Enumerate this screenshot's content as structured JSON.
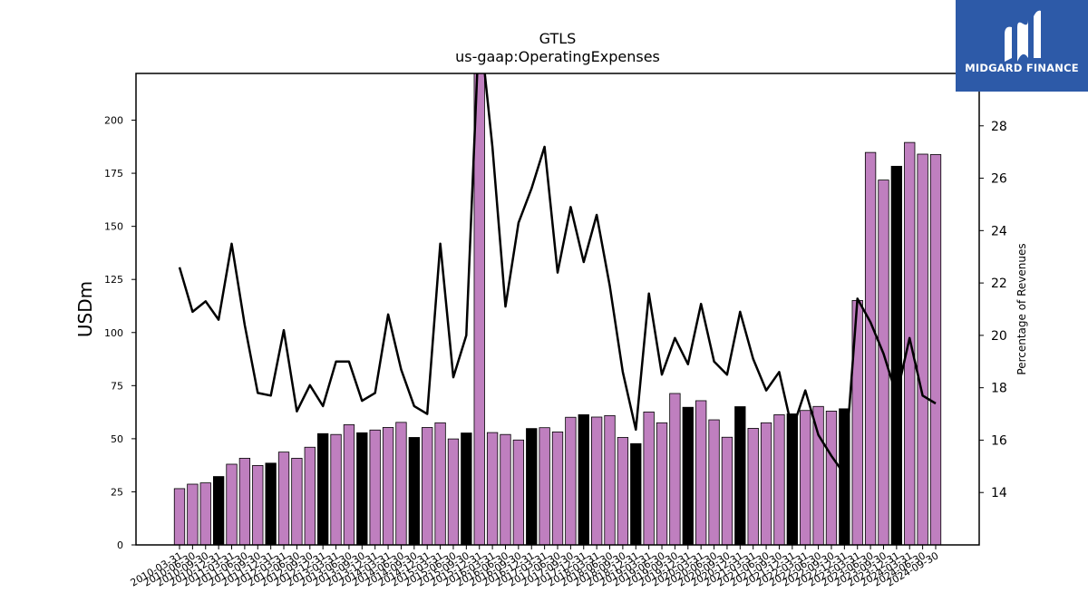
{
  "chart_data": {
    "type": "bar",
    "title": "GTLS",
    "subtitle": "us-gaap:OperatingExpenses",
    "ylabel": "USDm",
    "y2label": "Percentage of Revenues",
    "ylim": [
      0,
      222
    ],
    "y2lim": [
      12,
      30
    ],
    "yticks": [
      0,
      25,
      50,
      75,
      100,
      125,
      150,
      175,
      200
    ],
    "y2ticks": [
      14,
      16,
      18,
      20,
      22,
      24,
      26,
      28
    ],
    "categories": [
      "2010-03-31",
      "2010-06-30",
      "2010-09-30",
      "2010-12-31",
      "2011-03-31",
      "2011-06-30",
      "2011-09-30",
      "2011-12-31",
      "2012-03-31",
      "2012-06-30",
      "2012-09-30",
      "2012-12-31",
      "2013-03-31",
      "2013-06-30",
      "2013-09-30",
      "2013-12-31",
      "2014-03-31",
      "2014-06-30",
      "2014-09-30",
      "2014-12-31",
      "2015-03-31",
      "2015-06-30",
      "2015-09-30",
      "2015-12-31",
      "2016-03-31",
      "2016-06-30",
      "2016-09-30",
      "2016-12-31",
      "2017-03-31",
      "2017-06-30",
      "2017-09-30",
      "2017-12-31",
      "2018-03-31",
      "2018-06-30",
      "2018-09-30",
      "2018-12-31",
      "2019-03-31",
      "2019-06-30",
      "2019-09-30",
      "2019-12-31",
      "2020-03-31",
      "2020-06-30",
      "2020-09-30",
      "2020-12-31",
      "2021-03-31",
      "2021-06-30",
      "2021-09-30",
      "2021-12-31",
      "2022-03-31",
      "2022-06-30",
      "2022-09-30",
      "2022-12-31",
      "2023-03-31",
      "2023-06-30",
      "2023-09-30",
      "2023-12-31",
      "2024-03-31",
      "2024-06-30",
      "2024-09-30"
    ],
    "xtick_labels": [
      "2010-03-31",
      "2010-06-30",
      "2010-09-30",
      "2010-12-31",
      "2011-03-31",
      "2011-06-30",
      "2011-09-30",
      "2011-12-31",
      "2012-03-31",
      "2012-06-30",
      "2012-09-30",
      "2012-12-31",
      "2013-03-31",
      "2013-06-30",
      "2013-09-30",
      "2013-12-31",
      "2014-03-31",
      "2014-06-30",
      "2014-09-30",
      "2014-12-31",
      "2015-03-31",
      "2015-06-30",
      "2015-09-30",
      "2015-12-31",
      "2016-03-31",
      "2016-06-30",
      "2016-09-30",
      "2016-12-31",
      "2017-03-31",
      "2017-06-30",
      "2017-09-30",
      "2017-12-31",
      "2018-03-31",
      "2018-06-30",
      "2018-09-30",
      "2018-12-31",
      "2019-03-31",
      "2019-06-30",
      "2019-09-30",
      "2019-12-31",
      "2020-03-31",
      "2020-06-30",
      "2020-09-30",
      "2020-12-31",
      "2021-03-31",
      "2021-06-30",
      "2021-09-30",
      "2021-12-31",
      "2022-03-31",
      "2022-06-30",
      "2022-09-30",
      "2022-12-31",
      "2023-03-31",
      "2023-06-30",
      "2023-09-30",
      "2023-12-31",
      "2024-03-31",
      "2024-06-30",
      "2024-09-30"
    ],
    "series": [
      {
        "kind": "bar",
        "axis": "left",
        "values": [
          26.5,
          28.6,
          29.2,
          32.2,
          38,
          40.8,
          37.4,
          38.5,
          43.7,
          40.8,
          46,
          52.4,
          52,
          56.6,
          52.8,
          54.1,
          55.3,
          57.7,
          50.6,
          55.3,
          57.5,
          49.9,
          52.7,
          226,
          52.9,
          52,
          49.4,
          54.8,
          55.2,
          53.2,
          60.1,
          61.3,
          60.2,
          60.9,
          50.6,
          47.7,
          62.6,
          57.5,
          71.3,
          64.8,
          67.9,
          58.9,
          50.7,
          65.1,
          54.9,
          57.5,
          61.3,
          61.7,
          63.3,
          65.2,
          63,
          64.1,
          115.1,
          184.8,
          171.8,
          178.3,
          189.5,
          184,
          183.8
        ],
        "highlight_indices": [
          3,
          7,
          11,
          14,
          18,
          22,
          27,
          31,
          35,
          39,
          43,
          47,
          51,
          55
        ]
      },
      {
        "kind": "line",
        "axis": "right",
        "values": [
          22.6,
          20.9,
          21.3,
          20.6,
          23.5,
          20.4,
          17.8,
          17.7,
          20.2,
          17.1,
          18.1,
          17.3,
          19,
          19,
          17.5,
          17.8,
          20.8,
          18.7,
          17.3,
          17,
          23.5,
          18.4,
          20,
          32,
          27.2,
          21.1,
          24.3,
          25.6,
          27.2,
          22.4,
          24.9,
          22.8,
          24.6,
          21.9,
          18.6,
          16.4,
          21.6,
          18.5,
          19.9,
          18.9,
          21.2,
          19,
          18.5,
          20.9,
          19.1,
          17.9,
          18.6,
          16.4,
          17.9,
          16.2,
          15.4,
          14.7,
          21.4,
          20.5,
          19.3,
          17.7,
          19.9,
          17.7,
          17.4
        ]
      }
    ],
    "colors": {
      "bar": "#bf7fbf",
      "bar_highlight": "#000000",
      "line": "#000000",
      "logo_bg": "#2d5aa8"
    },
    "grid": false,
    "legend": "none"
  },
  "logo": {
    "text": "MIDGARD FINANCE",
    "icon": "midgard-logo-icon"
  }
}
